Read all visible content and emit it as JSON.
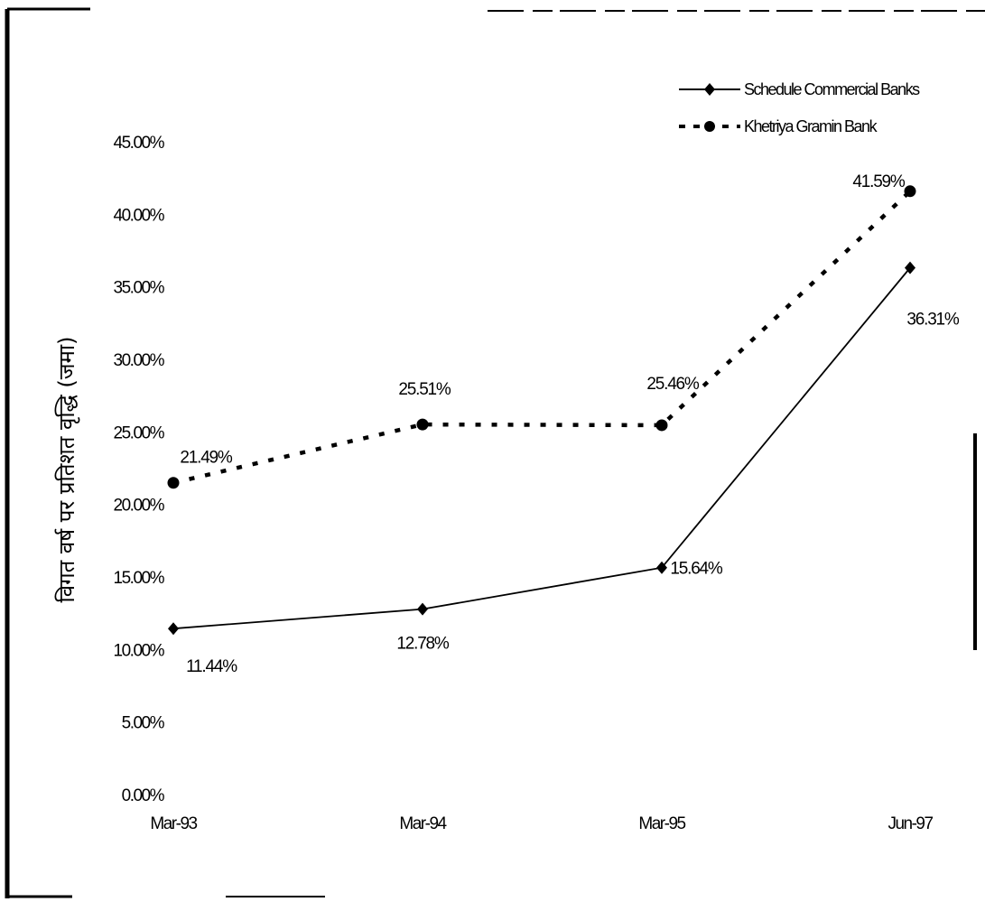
{
  "chart_data": {
    "type": "line",
    "title": "",
    "xlabel": "",
    "ylabel": "विगत वर्ष पर प्रतिशत वृद्धि (जमा)",
    "categories": [
      "Mar-93",
      "Mar-94",
      "Mar-95",
      "Jun-97"
    ],
    "ylim": [
      0,
      45
    ],
    "yticks": [
      "0.00%",
      "5.00%",
      "10.00%",
      "15.00%",
      "20.00%",
      "25.00%",
      "30.00%",
      "35.00%",
      "40.00%",
      "45.00%"
    ],
    "grid": false,
    "legend_position": "top-right",
    "series": [
      {
        "name": "Schedule Commercial Banks",
        "values": [
          11.44,
          12.78,
          15.64,
          36.31
        ],
        "labels": [
          "11.44%",
          "12.78%",
          "15.64%",
          "36.31%"
        ],
        "line_style": "solid",
        "marker": "diamond",
        "color": "#000000"
      },
      {
        "name": "Khetriya Gramin Bank",
        "values": [
          21.49,
          25.51,
          25.46,
          41.59
        ],
        "labels": [
          "21.49%",
          "25.51%",
          "25.46%",
          "41.59%"
        ],
        "line_style": "dotted",
        "marker": "circle",
        "color": "#000000"
      }
    ]
  }
}
